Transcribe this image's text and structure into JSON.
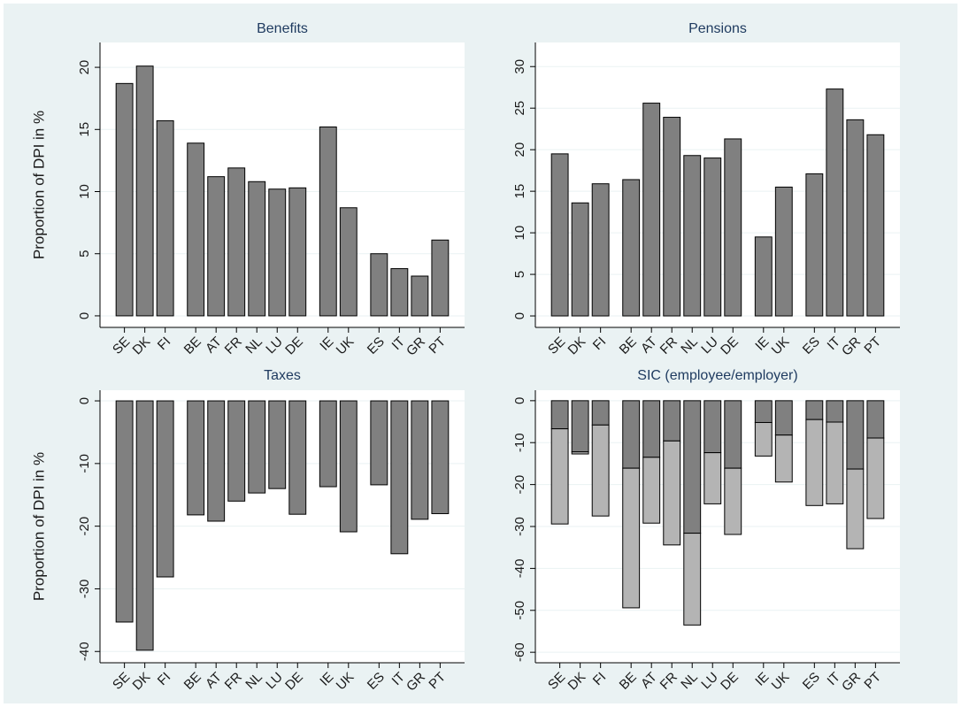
{
  "chart_data": [
    {
      "type": "bar",
      "title": "Benefits",
      "y_label": "Proportion of DPI in %",
      "categories": [
        "SE",
        "DK",
        "FI",
        null,
        "BE",
        "AT",
        "FR",
        "NL",
        "LU",
        "DE",
        null,
        "IE",
        "UK",
        null,
        "ES",
        "IT",
        "GR",
        "PT"
      ],
      "values": [
        18.7,
        20.1,
        15.7,
        null,
        13.9,
        11.2,
        11.9,
        10.8,
        10.2,
        10.3,
        null,
        15.2,
        8.7,
        null,
        5.0,
        3.8,
        3.2,
        6.1
      ],
      "color": "#808080",
      "ylim": [
        -0.93,
        22
      ],
      "yticks": [
        0,
        5,
        10,
        15,
        20
      ],
      "grid": true
    },
    {
      "type": "bar",
      "title": "Pensions",
      "categories": [
        "SE",
        "DK",
        "FI",
        null,
        "BE",
        "AT",
        "FR",
        "NL",
        "LU",
        "DE",
        null,
        "IE",
        "UK",
        null,
        "ES",
        "IT",
        "GR",
        "PT"
      ],
      "values": [
        19.5,
        13.6,
        15.9,
        null,
        16.4,
        25.6,
        23.9,
        19.3,
        19.0,
        21.3,
        null,
        9.5,
        15.5,
        null,
        17.1,
        27.3,
        23.6,
        21.8
      ],
      "color": "#808080",
      "ylim": [
        -1.38,
        32.9
      ],
      "yticks": [
        0,
        5,
        10,
        15,
        20,
        25,
        30
      ],
      "grid": true
    },
    {
      "type": "bar",
      "title": "Taxes",
      "y_label": "Proportion of DPI in %",
      "categories": [
        "SE",
        "DK",
        "FI",
        null,
        "BE",
        "AT",
        "FR",
        "NL",
        "LU",
        "DE",
        null,
        "IE",
        "UK",
        null,
        "ES",
        "IT",
        "GR",
        "PT"
      ],
      "values": [
        -35.3,
        -39.8,
        -28.1,
        null,
        -18.2,
        -19.2,
        -16.0,
        -14.7,
        -14.0,
        -18.1,
        null,
        -13.7,
        -20.9,
        null,
        -13.4,
        -24.4,
        -18.9,
        -18.0
      ],
      "color": "#808080",
      "ylim": [
        -41.8,
        1.7
      ],
      "yticks": [
        0,
        -10,
        -20,
        -30,
        -40
      ],
      "grid": true
    },
    {
      "type": "stacked_bar",
      "title": "SIC (employee/employer)",
      "categories": [
        "SE",
        "DK",
        "FI",
        null,
        "BE",
        "AT",
        "FR",
        "NL",
        "LU",
        "DE",
        null,
        "IE",
        "UK",
        null,
        "ES",
        "IT",
        "GR",
        "PT"
      ],
      "series": [
        {
          "color": "#808080",
          "values": [
            -6.7,
            -12.2,
            -5.8,
            null,
            -16.1,
            -13.5,
            -9.6,
            -31.6,
            -12.4,
            -16.1,
            null,
            -5.2,
            -8.2,
            null,
            -4.5,
            -5.1,
            -16.3,
            -8.9
          ]
        },
        {
          "color": "#b4b4b4",
          "values": [
            -22.7,
            -0.5,
            -21.7,
            null,
            -33.3,
            -15.7,
            -24.8,
            -21.9,
            -12.2,
            -15.8,
            null,
            -8.0,
            -11.2,
            null,
            -20.5,
            -19.5,
            -19.0,
            -19.2
          ]
        }
      ],
      "ylim": [
        -62.5,
        2.5
      ],
      "yticks": [
        0,
        -10,
        -20,
        -30,
        -40,
        -50,
        -60
      ],
      "grid": true
    }
  ]
}
